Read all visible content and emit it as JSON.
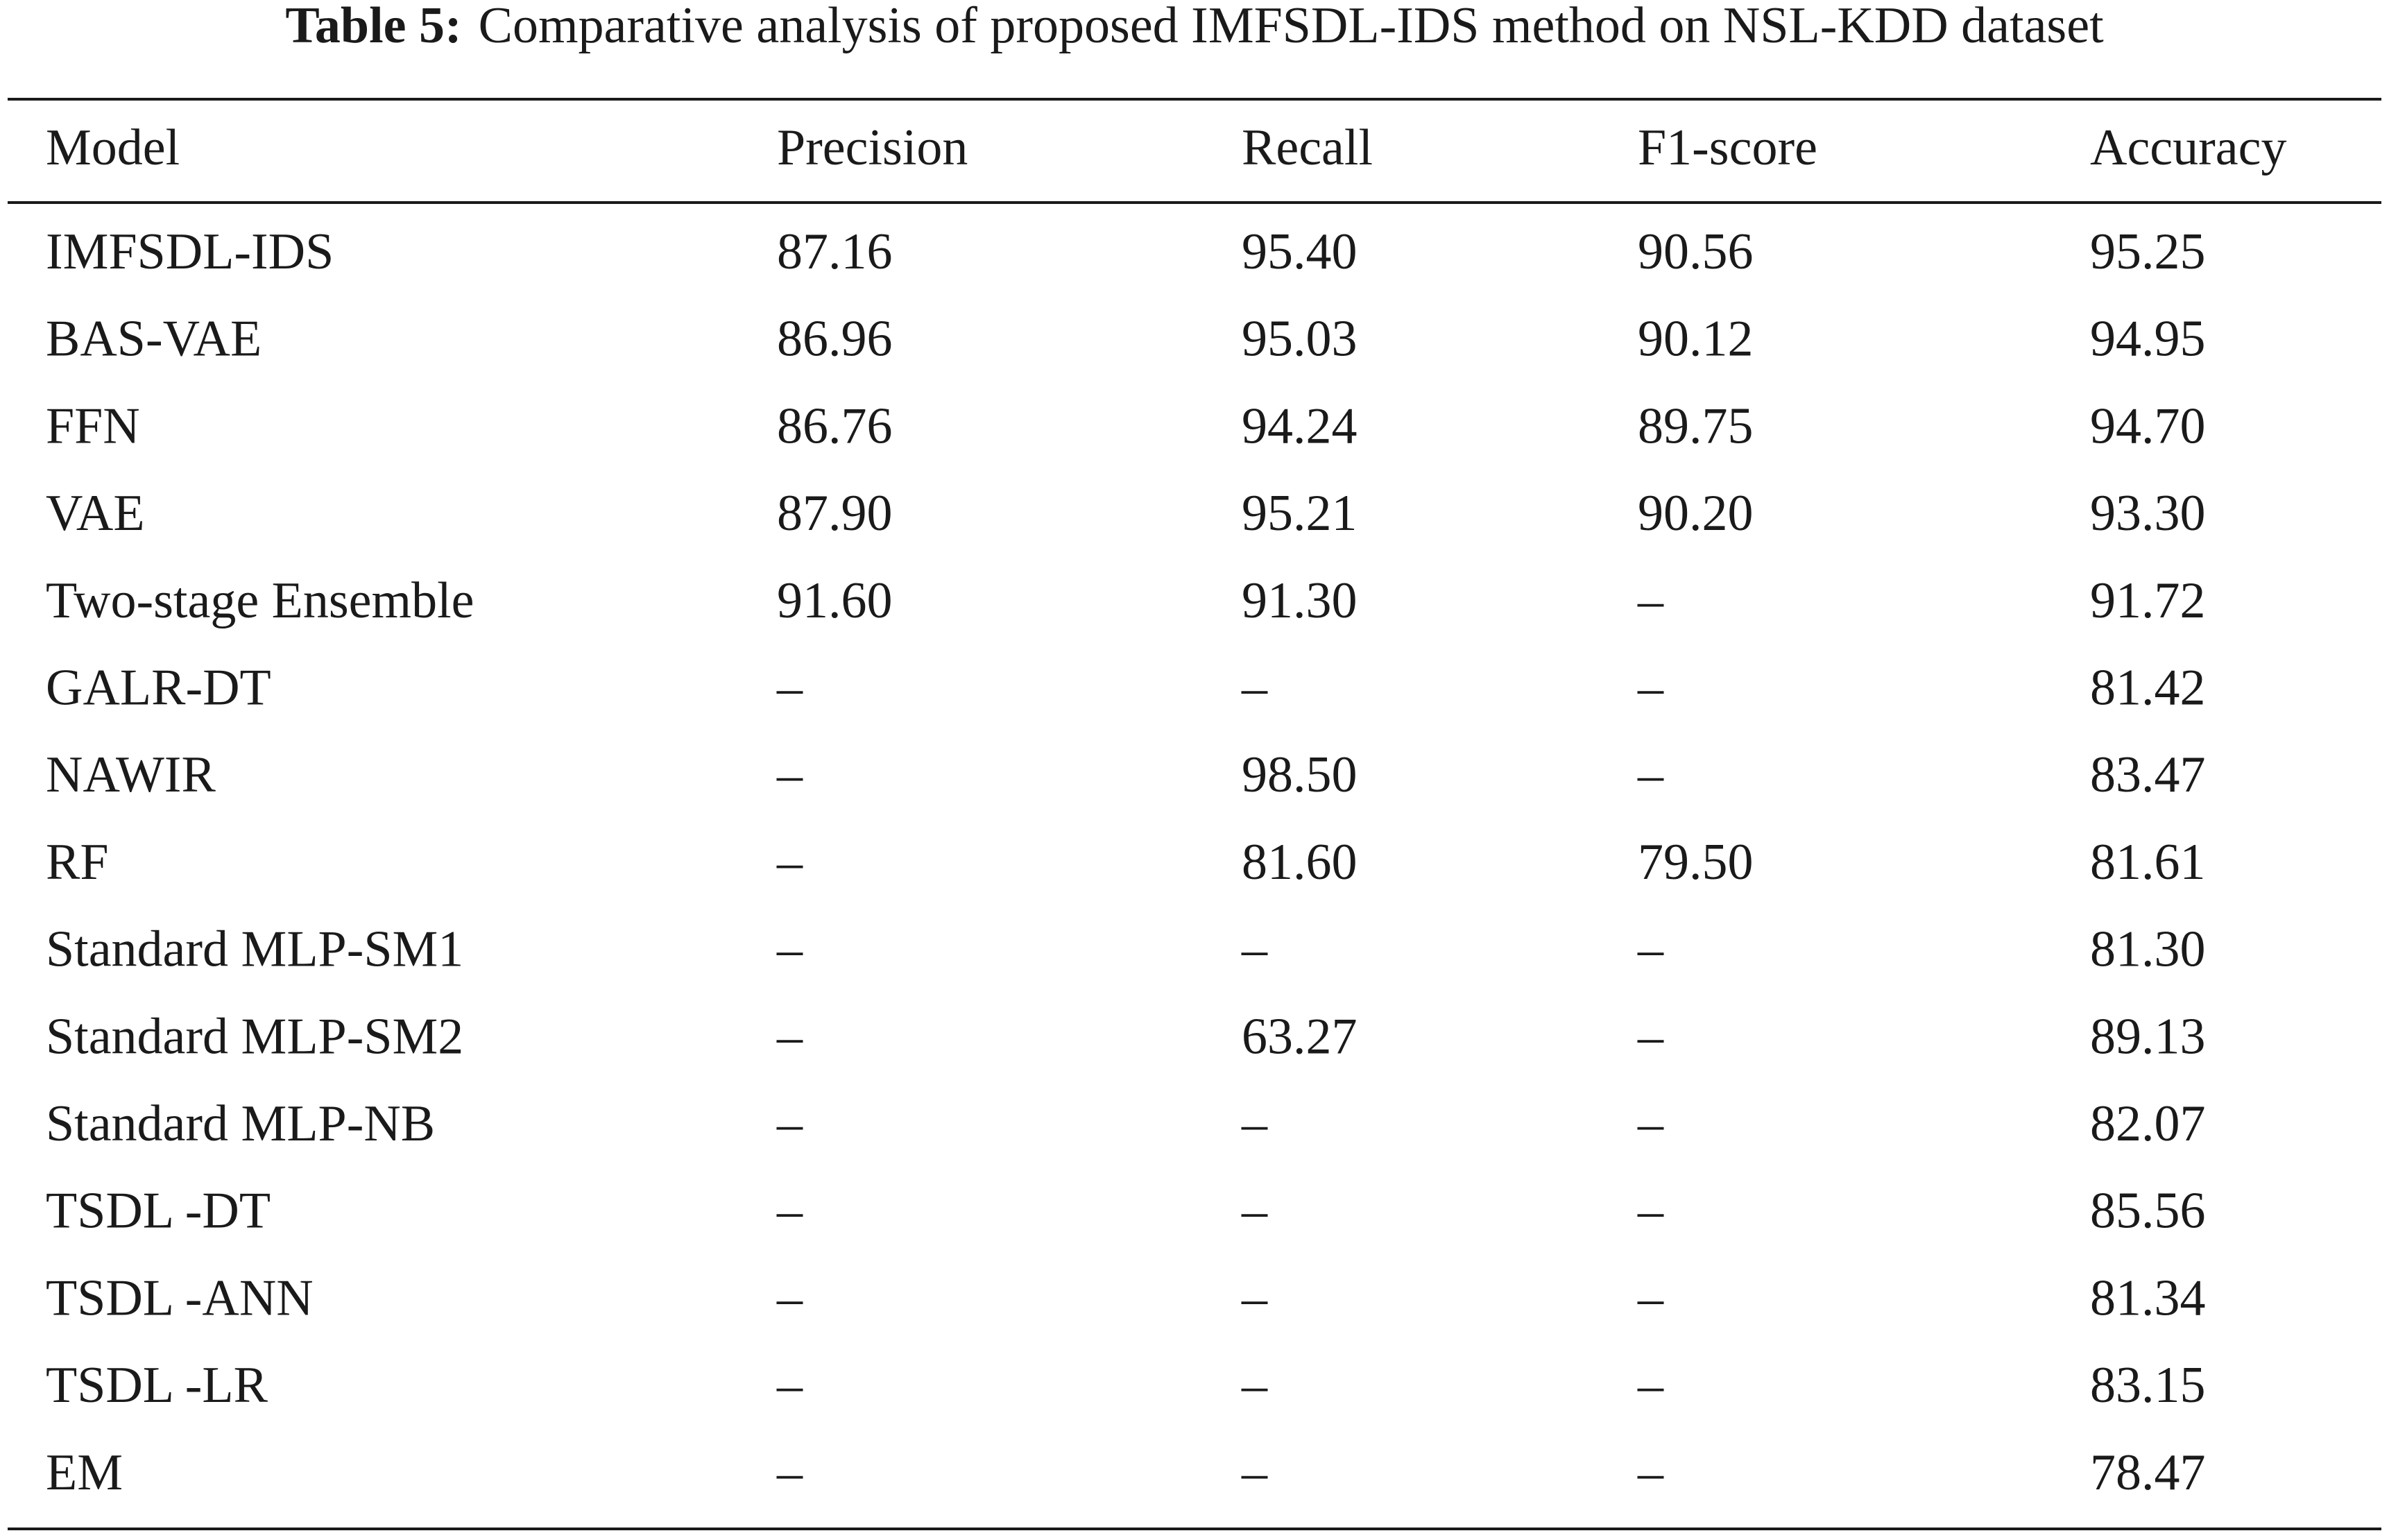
{
  "caption": {
    "label": "Table 5:",
    "text": "Comparative analysis of proposed IMFSDL-IDS method on NSL-KDD dataset"
  },
  "table": {
    "header": [
      "Model",
      "Precision",
      "Recall",
      "F1-score",
      "Accuracy"
    ],
    "rows": [
      [
        "IMFSDL-IDS",
        "87.16",
        "95.40",
        "90.56",
        "95.25"
      ],
      [
        "BAS-VAE",
        "86.96",
        "95.03",
        "90.12",
        "94.95"
      ],
      [
        "FFN",
        "86.76",
        "94.24",
        "89.75",
        "94.70"
      ],
      [
        "VAE",
        "87.90",
        "95.21",
        "90.20",
        "93.30"
      ],
      [
        "Two-stage Ensemble",
        "91.60",
        "91.30",
        "–",
        "91.72"
      ],
      [
        "GALR-DT",
        "–",
        "–",
        "–",
        "81.42"
      ],
      [
        "NAWIR",
        "–",
        "98.50",
        "–",
        "83.47"
      ],
      [
        "RF",
        "–",
        "81.60",
        "79.50",
        "81.61"
      ],
      [
        "Standard MLP-SM1",
        "–",
        "–",
        "–",
        "81.30"
      ],
      [
        "Standard MLP-SM2",
        "–",
        "63.27",
        "–",
        "89.13"
      ],
      [
        "Standard MLP-NB",
        "–",
        "–",
        "–",
        "82.07"
      ],
      [
        "TSDL -DT",
        "–",
        "–",
        "–",
        "85.56"
      ],
      [
        "TSDL -ANN",
        "–",
        "–",
        "–",
        "81.34"
      ],
      [
        "TSDL -LR",
        "–",
        "–",
        "–",
        "83.15"
      ],
      [
        "EM",
        "–",
        "–",
        "–",
        "78.47"
      ]
    ]
  }
}
